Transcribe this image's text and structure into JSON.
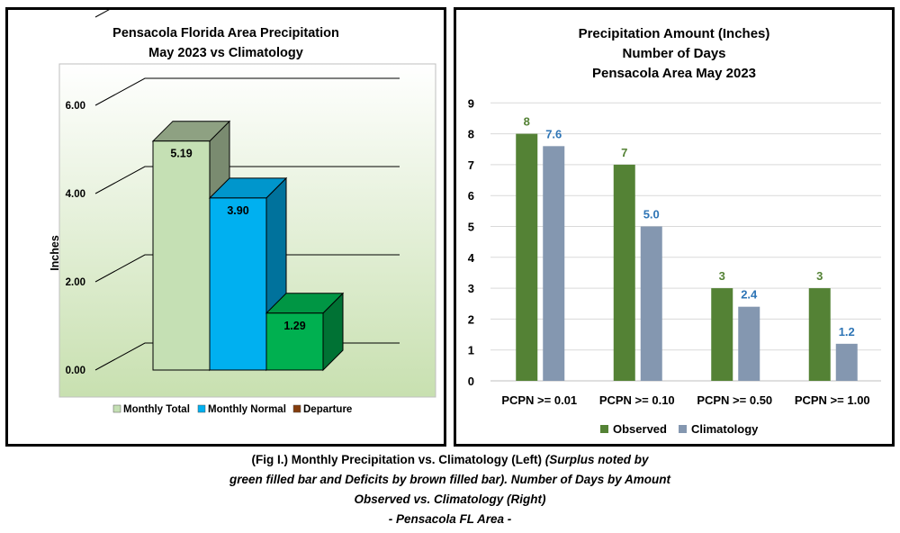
{
  "left_chart": {
    "title_line1": "Pensacola Florida Area Precipitation",
    "title_line2": "May 2023 vs Climatology",
    "ylabel": "Inches",
    "y_ticks": [
      "0.00",
      "2.00",
      "4.00",
      "6.00"
    ],
    "legend": [
      "Monthly Total",
      "Monthly Normal",
      "Departure"
    ],
    "colors": {
      "total": "#c5e0b4",
      "normal": "#00b0f0",
      "departure_surplus": "#00b050",
      "departure_deficit": "#843c0c",
      "plot_bg_top": "#ffffff",
      "plot_bg_bottom": "#c8e0b0"
    }
  },
  "right_chart": {
    "title_line1": "Precipitation Amount (Inches)",
    "title_line2": "Number of Days",
    "title_line3": "Pensacola Area May 2023",
    "colors": {
      "observed": "#548235",
      "climatology": "#8497b0"
    }
  },
  "chart_data": [
    {
      "type": "bar",
      "title": "Pensacola Florida Area Precipitation May 2023 vs Climatology",
      "ylabel": "Inches",
      "ylim": [
        0,
        8
      ],
      "categories": [
        "Monthly Total",
        "Monthly Normal",
        "Departure"
      ],
      "values": [
        5.19,
        3.9,
        1.29
      ],
      "labels": [
        "5.19",
        "3.90",
        "1.29"
      ],
      "style": "3d"
    },
    {
      "type": "bar",
      "title": "Precipitation Amount (Inches) Number of Days Pensacola Area May 2023",
      "categories": [
        "PCPN >= 0.01",
        "PCPN >= 0.10",
        "PCPN >= 0.50",
        "PCPN >= 1.00"
      ],
      "series": [
        {
          "name": "Observed",
          "values": [
            8,
            7,
            3,
            3
          ],
          "labels": [
            "8",
            "7",
            "3",
            "3"
          ]
        },
        {
          "name": "Climatology",
          "values": [
            7.6,
            5.0,
            2.4,
            1.2
          ],
          "labels": [
            "7.6",
            "5.0",
            "2.4",
            "1.2"
          ]
        }
      ],
      "ylim": [
        0,
        9
      ],
      "y_ticks": [
        "0",
        "1",
        "2",
        "3",
        "4",
        "5",
        "6",
        "7",
        "8",
        "9"
      ],
      "grid": true,
      "legend_position": "bottom"
    }
  ],
  "caption": {
    "line1_bold": "(Fig I.) Monthly Precipitation vs. Climatology (Left) ",
    "line1_italic": "(Surplus noted by",
    "line2": "green filled bar and Deficits by brown filled bar). Number of Days by Amount",
    "line3": "Observed vs. Climatology (Right)",
    "line4": "- Pensacola FL Area -"
  }
}
